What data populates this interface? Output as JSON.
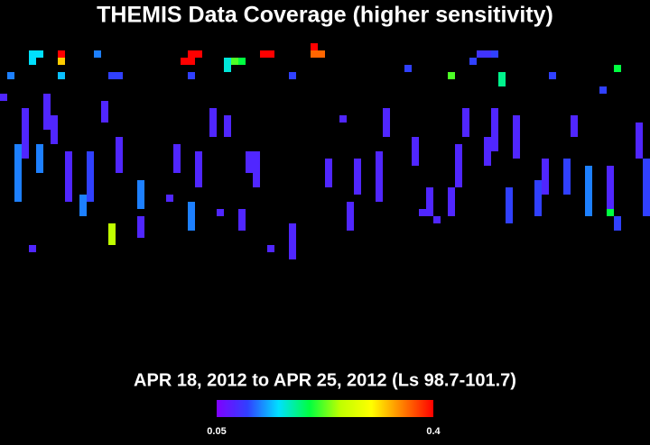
{
  "chart_data": {
    "type": "coverage",
    "title": "THEMIS Data Coverage (higher sensitivity)",
    "subtitle": "APR 18, 2012 to APR 25, 2012 (Ls 98.7-101.7)",
    "colorbar": {
      "clim": [
        0.05,
        0.4
      ],
      "ticks": [
        0.05,
        0.4
      ],
      "colors": [
        "#8000ff",
        "#3040ff",
        "#00e0ff",
        "#00ff40",
        "#c0ff00",
        "#ffff00",
        "#ff8000",
        "#ff0000"
      ]
    },
    "strips": {
      "x": [
        4,
        5,
        8,
        8,
        13,
        25,
        26,
        27,
        31,
        32,
        33,
        36,
        37,
        43,
        43,
        44,
        66,
        67,
        68,
        65,
        56,
        85,
        1,
        8,
        15,
        16,
        26,
        40,
        62,
        69,
        76,
        83,
        0,
        2,
        3,
        5,
        6,
        7,
        9,
        11,
        12,
        14,
        15,
        16,
        19,
        19,
        24,
        26,
        27,
        29,
        31,
        33,
        34,
        35,
        40,
        45,
        48,
        49,
        52,
        53,
        57,
        59,
        62,
        63,
        64,
        67,
        68,
        70,
        71,
        74,
        75,
        78,
        79,
        81,
        84,
        84,
        85,
        89,
        88,
        4,
        37,
        40,
        23,
        30,
        60,
        47,
        58
      ],
      "y0": [
        2,
        2,
        2,
        3,
        2,
        3,
        2,
        2,
        3,
        3,
        3,
        2,
        2,
        1,
        2,
        2,
        2,
        2,
        2,
        3,
        4,
        4,
        5,
        5,
        5,
        5,
        5,
        5,
        5,
        5,
        5,
        7,
        8,
        15,
        10,
        15,
        8,
        11,
        16,
        22,
        16,
        9,
        26,
        14,
        20,
        25,
        15,
        23,
        16,
        10,
        11,
        24,
        16,
        16,
        26,
        17,
        23,
        17,
        16,
        10,
        14,
        21,
        21,
        15,
        10,
        14,
        10,
        21,
        11,
        20,
        17,
        17,
        11,
        18,
        18,
        24,
        25,
        17,
        12,
        29,
        29,
        29,
        22,
        24,
        25,
        11,
        24
      ],
      "y1": [
        3,
        2,
        2,
        3,
        2,
        3,
        3,
        2,
        4,
        3,
        3,
        2,
        2,
        1,
        2,
        2,
        2,
        2,
        2,
        3,
        4,
        4,
        5,
        5,
        5,
        5,
        5,
        5,
        5,
        6,
        5,
        7,
        8,
        22,
        16,
        18,
        12,
        14,
        22,
        24,
        22,
        11,
        28,
        18,
        23,
        27,
        18,
        26,
        20,
        13,
        13,
        26,
        18,
        20,
        28,
        20,
        26,
        21,
        22,
        13,
        17,
        24,
        24,
        20,
        13,
        17,
        15,
        25,
        16,
        24,
        21,
        21,
        13,
        24,
        23,
        24,
        26,
        24,
        16,
        29,
        29,
        30,
        22,
        24,
        25,
        11,
        24
      ],
      "values": [
        0.15,
        0.15,
        0.4,
        0.32,
        0.12,
        0.4,
        0.4,
        0.4,
        0.16,
        0.22,
        0.2,
        0.4,
        0.4,
        0.4,
        0.36,
        0.36,
        0.09,
        0.09,
        0.1,
        0.1,
        0.1,
        0.2,
        0.12,
        0.14,
        0.1,
        0.1,
        0.1,
        0.1,
        0.22,
        0.18,
        0.1,
        0.1,
        0.08,
        0.12,
        0.08,
        0.12,
        0.08,
        0.08,
        0.08,
        0.12,
        0.1,
        0.08,
        0.25,
        0.08,
        0.12,
        0.08,
        0.08,
        0.12,
        0.08,
        0.08,
        0.08,
        0.08,
        0.08,
        0.08,
        0.08,
        0.08,
        0.08,
        0.08,
        0.08,
        0.08,
        0.08,
        0.08,
        0.08,
        0.08,
        0.08,
        0.08,
        0.08,
        0.1,
        0.08,
        0.1,
        0.08,
        0.1,
        0.08,
        0.12,
        0.08,
        0.2,
        0.1,
        0.1,
        0.08,
        0.08,
        0.08,
        0.08,
        0.08,
        0.08,
        0.08,
        0.08,
        0.08
      ]
    }
  }
}
